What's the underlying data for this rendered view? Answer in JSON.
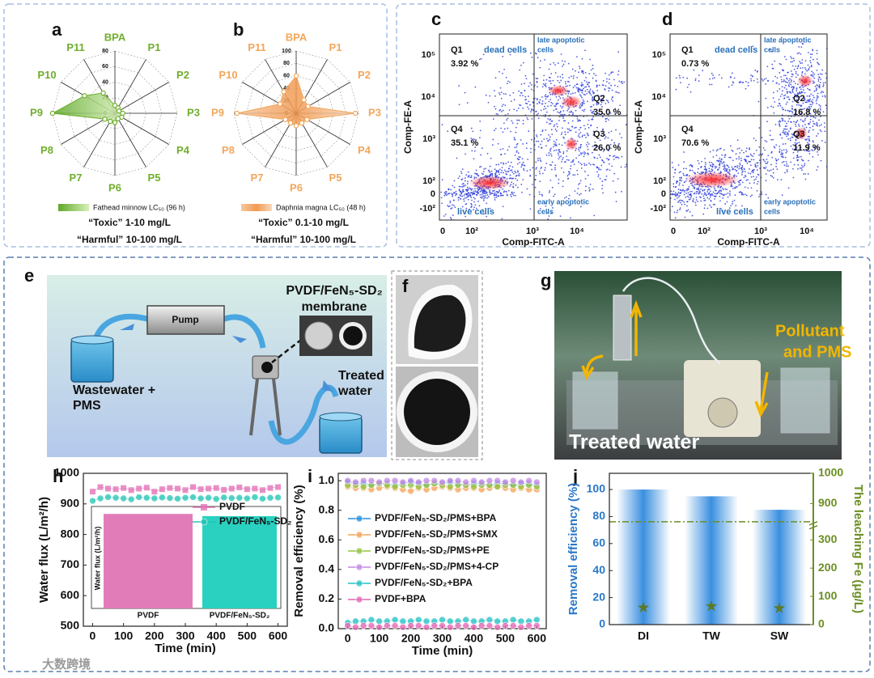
{
  "chart_data": [
    {
      "type": "radar",
      "label": "a",
      "categories": [
        "BPA",
        "P1",
        "P2",
        "P3",
        "P4",
        "P5",
        "P6",
        "P7",
        "P8",
        "P9",
        "P10",
        "P11"
      ],
      "values": [
        10,
        8,
        6,
        10,
        10,
        8,
        12,
        12,
        15,
        80,
        45,
        30
      ],
      "color": "#6fae2c",
      "rlim": [
        0,
        80
      ],
      "rticks": [
        0,
        20,
        40,
        60,
        80
      ],
      "legend": "Fathead minnow LC₅₀ (96 h)",
      "notes": [
        "“Toxic” 1-10 mg/L",
        "“Harmful” 10-100 mg/L"
      ]
    },
    {
      "type": "radar",
      "label": "b",
      "categories": [
        "BPA",
        "P1",
        "P2",
        "P3",
        "P4",
        "P5",
        "P6",
        "P7",
        "P8",
        "P9",
        "P10",
        "P11"
      ],
      "values": [
        60,
        25,
        22,
        95,
        20,
        18,
        20,
        18,
        20,
        95,
        30,
        40
      ],
      "color": "#f2a65a",
      "rlim": [
        0,
        100
      ],
      "rticks": [
        0,
        20,
        40,
        60,
        80,
        100
      ],
      "legend": "Daphnia magna LC₅₀ (48 h)",
      "notes": [
        "“Toxic” 0.1-10 mg/L",
        "“Harmful” 10-100 mg/L"
      ]
    },
    {
      "type": "line",
      "label": "h",
      "x": [
        0,
        25,
        50,
        75,
        100,
        125,
        150,
        175,
        200,
        225,
        250,
        275,
        300,
        325,
        350,
        375,
        400,
        425,
        450,
        475,
        500,
        525,
        550,
        575,
        600
      ],
      "series": [
        {
          "name": "PVDF",
          "color": "#e474b8",
          "marker": "square",
          "values": [
            940,
            955,
            950,
            948,
            952,
            945,
            950,
            953,
            940,
            948,
            952,
            950,
            945,
            955,
            948,
            950,
            952,
            946,
            950,
            954,
            948,
            950,
            945,
            952,
            955
          ]
        },
        {
          "name": "PVDF/FeN₅-SD₂",
          "color": "#22c4b4",
          "marker": "circle",
          "values": [
            910,
            918,
            922,
            920,
            918,
            915,
            922,
            920,
            918,
            921,
            919,
            917,
            920,
            922,
            918,
            920,
            916,
            921,
            919,
            920,
            918,
            922,
            917,
            920,
            921
          ]
        }
      ],
      "xlim": [
        -30,
        630
      ],
      "xticks": [
        0,
        100,
        200,
        300,
        400,
        500,
        600
      ],
      "ylim": [
        500,
        1000
      ],
      "yticks": [
        500,
        600,
        700,
        800,
        900,
        1000
      ],
      "xlabel": "Time (min)",
      "ylabel": "Water flux (L/m²/h)",
      "inset": {
        "type": "bar",
        "categories": [
          "PVDF",
          "PVDF/FeN₅-SD₂"
        ],
        "values": [
          942,
          920
        ],
        "colors": [
          "#e27cb8",
          "#2ad0c0"
        ],
        "ylim": [
          0,
          1000
        ],
        "ylabel": "Water flux (L/m²/h)"
      }
    },
    {
      "type": "line",
      "label": "i",
      "x": [
        0,
        25,
        50,
        75,
        100,
        125,
        150,
        175,
        200,
        225,
        250,
        275,
        300,
        325,
        350,
        375,
        400,
        425,
        450,
        475,
        500,
        525,
        550,
        575,
        600
      ],
      "series": [
        {
          "name": "PVDF/FeN₅-SD₂/PMS+BPA",
          "color": "#2390e0",
          "marker": "circle",
          "values": [
            0.99,
            0.98,
            0.98,
            0.97,
            0.98,
            0.98,
            0.97,
            0.98,
            0.99,
            0.98,
            0.97,
            0.98,
            0.98,
            0.99,
            0.98,
            0.97,
            0.98,
            0.98,
            0.97,
            0.98,
            0.98,
            0.97,
            0.98,
            0.98,
            0.97
          ]
        },
        {
          "name": "PVDF/FeN₅-SD₂/PMS+SMX",
          "color": "#f5a35a",
          "marker": "circle",
          "values": [
            0.96,
            0.95,
            0.95,
            0.94,
            0.95,
            0.96,
            0.95,
            0.94,
            0.93,
            0.95,
            0.94,
            0.95,
            0.96,
            0.95,
            0.94,
            0.95,
            0.95,
            0.94,
            0.95,
            0.96,
            0.95,
            0.94,
            0.95,
            0.94,
            0.94
          ]
        },
        {
          "name": "PVDF/FeN₅-SD₂/PMS+PE",
          "color": "#94c441",
          "marker": "circle",
          "values": [
            0.97,
            0.97,
            0.96,
            0.97,
            0.98,
            0.97,
            0.96,
            0.97,
            0.97,
            0.96,
            0.97,
            0.98,
            0.97,
            0.96,
            0.97,
            0.97,
            0.96,
            0.97,
            0.97,
            0.96,
            0.97,
            0.97,
            0.96,
            0.97,
            0.96
          ]
        },
        {
          "name": "PVDF/FeN₅-SD₂/PMS+4-CP",
          "color": "#c488e4",
          "marker": "circle",
          "values": [
            1.0,
            0.99,
            1.0,
            1.0,
            0.99,
            1.0,
            1.0,
            0.99,
            1.0,
            0.99,
            1.0,
            1.0,
            0.99,
            1.0,
            1.0,
            0.99,
            1.0,
            0.99,
            1.0,
            1.0,
            0.99,
            1.0,
            0.99,
            1.0,
            0.99
          ]
        },
        {
          "name": "PVDF/FeN₅-SD₂+BPA",
          "color": "#22c2c4",
          "marker": "circle",
          "values": [
            0.04,
            0.05,
            0.05,
            0.06,
            0.05,
            0.05,
            0.06,
            0.05,
            0.05,
            0.06,
            0.05,
            0.05,
            0.06,
            0.05,
            0.05,
            0.06,
            0.05,
            0.05,
            0.06,
            0.05,
            0.05,
            0.06,
            0.05,
            0.05,
            0.06
          ]
        },
        {
          "name": "PVDF+BPA",
          "color": "#e464b4",
          "marker": "circle",
          "values": [
            0.02,
            0.01,
            0.02,
            0.02,
            0.01,
            0.02,
            0.02,
            0.01,
            0.02,
            0.02,
            0.01,
            0.02,
            0.02,
            0.01,
            0.02,
            0.02,
            0.01,
            0.02,
            0.02,
            0.01,
            0.02,
            0.02,
            0.01,
            0.02,
            0.02
          ]
        }
      ],
      "xlim": [
        -30,
        630
      ],
      "xticks": [
        0,
        100,
        200,
        300,
        400,
        500,
        600
      ],
      "ylim": [
        0,
        1.05
      ],
      "yticks": [
        {
          "value": 0,
          "label": "0.0"
        },
        0.2,
        0.4,
        0.6,
        0.8,
        {
          "value": 1,
          "label": "1.0"
        }
      ],
      "xlabel": "Time (min)",
      "ylabel": "Removal efficiency (%)"
    },
    {
      "type": "bar",
      "label": "j",
      "categories": [
        "DI",
        "TW",
        "SW"
      ],
      "series": [
        {
          "values": [
            100,
            95,
            85
          ],
          "color": "#3a8fe0"
        },
        {
          "values": [
            60,
            65,
            58
          ],
          "color": "#5a7a2a",
          "axis": "y2",
          "marker": "star"
        }
      ],
      "ylim": [
        0,
        112
      ],
      "yticks": [
        0,
        20,
        40,
        60,
        80,
        100
      ],
      "ylabel": "Removal efficiency (%)",
      "ycolor": "#2a78c8",
      "y2lim": [
        0,
        1000
      ],
      "y2ticks": [
        0,
        100,
        200,
        300,
        900,
        1000
      ],
      "y2_break": [
        300,
        900
      ],
      "y2label": "The leaching Fe (μg/L)",
      "y2color": "#6b8e23"
    }
  ],
  "flow": [
    {
      "label": "c",
      "ylabel": "Comp-FE-A",
      "xlabel": "Comp-FITC-A",
      "yticks": [
        "10⁵",
        "10⁴",
        "10³",
        "10²",
        "0",
        "-10²"
      ],
      "xticks": [
        "0",
        "10²",
        "10³",
        "10⁴"
      ],
      "quadrants": [
        {
          "name": "Q1",
          "value": "3.92 %"
        },
        {
          "name": "Q2",
          "value": "35.0 %"
        },
        {
          "name": "Q3",
          "value": "26.0 %"
        },
        {
          "name": "Q4",
          "value": "35.1 %"
        }
      ],
      "regions": {
        "dead": "dead cells",
        "late": [
          "late apoptotic",
          "cells"
        ],
        "live": "live cells",
        "early": [
          "early apoptotic",
          "cells"
        ]
      }
    },
    {
      "label": "d",
      "ylabel": "Comp-FE-A",
      "xlabel": "Comp-FITC-A",
      "yticks": [
        "10⁵",
        "10⁴",
        "10³",
        "10²",
        "0",
        "-10²"
      ],
      "xticks": [
        "0",
        "10²",
        "10³",
        "10⁴"
      ],
      "quadrants": [
        {
          "name": "Q1",
          "value": "0.73 %"
        },
        {
          "name": "Q2",
          "value": "16.8 %"
        },
        {
          "name": "Q3",
          "value": "11.9 %"
        },
        {
          "name": "Q4",
          "value": "70.6 %"
        }
      ],
      "regions": {
        "dead": "dead cells",
        "late": [
          "late apoptotic",
          "cells"
        ],
        "live": "live cells",
        "early": [
          "early apoptotic",
          "cells"
        ]
      }
    }
  ],
  "schematic": {
    "label": "e",
    "pump": "Pump",
    "membrane": [
      "PVDF/FeN₅-SD₂",
      "membrane"
    ],
    "feed": [
      "Wastewater +",
      "PMS"
    ],
    "effluent": [
      "Treated",
      "water"
    ]
  },
  "photos": {
    "label": "f"
  },
  "setup": {
    "label": "g",
    "feed": [
      "Pollutant",
      "and PMS"
    ],
    "effluent": "Treated water"
  },
  "watermark": "大数跨境"
}
